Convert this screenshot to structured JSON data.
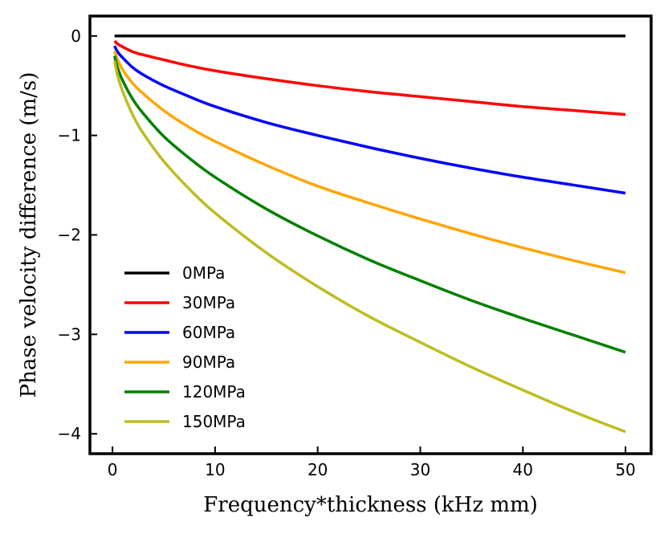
{
  "chart_data": {
    "type": "line",
    "title": "",
    "xlabel": "Frequency*thickness (kHz mm)",
    "ylabel": "Phase velocity difference (m/s)",
    "xlim": [
      -2.2,
      52.5
    ],
    "ylim": [
      -4.2,
      0.2
    ],
    "xticks": [
      0,
      10,
      20,
      30,
      40,
      50
    ],
    "xtick_labels": [
      "0",
      "10",
      "20",
      "30",
      "40",
      "50"
    ],
    "yticks": [
      0,
      -1,
      -2,
      -3,
      -4
    ],
    "ytick_labels": [
      "0",
      "−1",
      "−2",
      "−3",
      "−4"
    ],
    "grid": false,
    "legend_position": "lower-left",
    "x": [
      0.2,
      0.5,
      1,
      2,
      3,
      5,
      7.5,
      10,
      15,
      20,
      25,
      30,
      35,
      40,
      45,
      50
    ],
    "series": [
      {
        "name": "0MPa",
        "color": "#000000",
        "values": [
          0,
          0,
          0,
          0,
          0,
          0,
          0,
          0,
          0,
          0,
          0,
          0,
          0,
          0,
          0,
          0
        ]
      },
      {
        "name": "30MPa",
        "color": "#ff0000",
        "values": [
          -0.05,
          -0.08,
          -0.11,
          -0.16,
          -0.19,
          -0.24,
          -0.3,
          -0.35,
          -0.43,
          -0.5,
          -0.56,
          -0.61,
          -0.66,
          -0.71,
          -0.75,
          -0.79
        ]
      },
      {
        "name": "60MPa",
        "color": "#0000ff",
        "values": [
          -0.1,
          -0.16,
          -0.22,
          -0.32,
          -0.39,
          -0.5,
          -0.61,
          -0.71,
          -0.87,
          -1.0,
          -1.12,
          -1.23,
          -1.33,
          -1.42,
          -1.5,
          -1.58
        ]
      },
      {
        "name": "90MPa",
        "color": "#ffa500",
        "values": [
          -0.15,
          -0.24,
          -0.34,
          -0.48,
          -0.58,
          -0.75,
          -0.92,
          -1.06,
          -1.3,
          -1.51,
          -1.68,
          -1.84,
          -1.99,
          -2.13,
          -2.26,
          -2.38
        ]
      },
      {
        "name": "120MPa",
        "color": "#008000",
        "values": [
          -0.2,
          -0.32,
          -0.45,
          -0.64,
          -0.78,
          -1.01,
          -1.23,
          -1.42,
          -1.74,
          -2.01,
          -2.25,
          -2.46,
          -2.66,
          -2.84,
          -3.01,
          -3.18
        ]
      },
      {
        "name": "150MPa",
        "color": "#bcbd22",
        "values": [
          -0.25,
          -0.4,
          -0.56,
          -0.8,
          -0.98,
          -1.26,
          -1.54,
          -1.78,
          -2.18,
          -2.52,
          -2.82,
          -3.08,
          -3.33,
          -3.56,
          -3.78,
          -3.98
        ]
      }
    ]
  }
}
